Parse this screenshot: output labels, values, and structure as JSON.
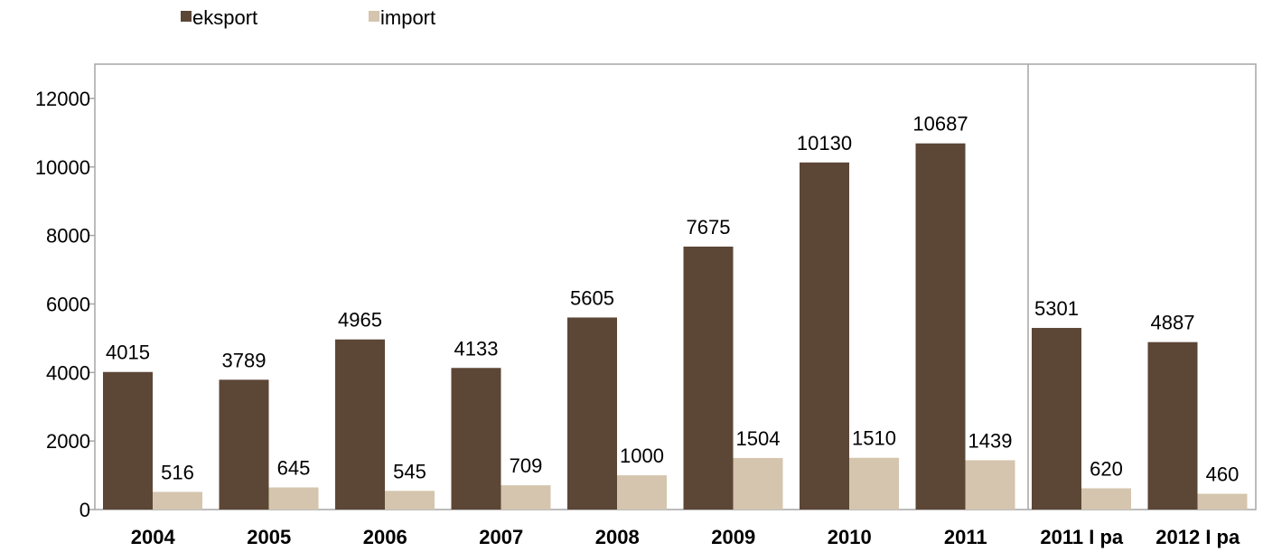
{
  "chart_data": {
    "type": "bar",
    "categories": [
      "2004",
      "2005",
      "2006",
      "2007",
      "2008",
      "2009",
      "2010",
      "2011",
      "2011 I pa",
      "2012 I pa"
    ],
    "series": [
      {
        "name": "eksport",
        "color": "#5c4636",
        "values": [
          4015,
          3789,
          4965,
          4133,
          5605,
          7675,
          10130,
          10687,
          5301,
          4887
        ]
      },
      {
        "name": "import",
        "color": "#d5c5ae",
        "values": [
          516,
          645,
          545,
          709,
          1000,
          1504,
          1510,
          1439,
          620,
          460
        ]
      }
    ],
    "yticks": [
      "0",
      "2000",
      "4000",
      "6000",
      "8000",
      "10000",
      "12000"
    ],
    "ylim": [
      0,
      13000
    ],
    "legend_position": "top-left",
    "divider_after_category": "2011",
    "grid": false
  }
}
